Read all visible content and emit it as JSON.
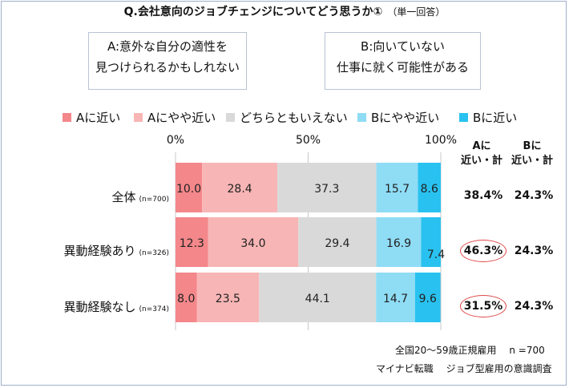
{
  "title": "Q.会社意向のジョブチェンジについてどう思うか①",
  "title_sub": "（単一回答）",
  "option_a": {
    "line1": "A:意外な自分の適性を",
    "line2": "見つけられるかもしれない"
  },
  "option_b": {
    "line1": "B:向いていない",
    "line2": "仕事に就く可能性がある"
  },
  "summary_headers": {
    "a": {
      "line1": "Aに",
      "line2": "近い・計"
    },
    "b": {
      "line1": "Bに",
      "line2": "近い・計"
    }
  },
  "footnote1": "全国20～59歳正規雇用　 n =700",
  "footnote2": "マイナビ転職　 ジョブ型雇用の意識調査",
  "chart_data": {
    "type": "bar",
    "orientation": "horizontal",
    "stacked": true,
    "xlim": [
      0,
      100
    ],
    "x_ticks": [
      "0%",
      "50%",
      "100%"
    ],
    "grid": true,
    "legend_position": "top",
    "categories": [
      "全体",
      "異動経験あり",
      "異動経験なし"
    ],
    "category_n": [
      "(n=700)",
      "(n=326)",
      "(n=374)"
    ],
    "series": [
      {
        "name": "Aに近い",
        "color": "#f4878a",
        "values": [
          10.0,
          12.3,
          8.0
        ],
        "labels": [
          "10.0",
          "12.3",
          "8.0"
        ]
      },
      {
        "name": "Aにやや近い",
        "color": "#f8b5b5",
        "values": [
          28.4,
          34.0,
          23.5
        ],
        "labels": [
          "28.4",
          "34.0",
          "23.5"
        ]
      },
      {
        "name": "どちらともいえない",
        "color": "#d9d9d9",
        "values": [
          37.3,
          29.4,
          44.1
        ],
        "labels": [
          "37.3",
          "29.4",
          "44.1"
        ]
      },
      {
        "name": "Bにやや近い",
        "color": "#8fdcf5",
        "values": [
          15.7,
          16.9,
          14.7
        ],
        "labels": [
          "15.7",
          "16.9",
          "14.7"
        ]
      },
      {
        "name": "Bに近い",
        "color": "#29c2f0",
        "values": [
          8.6,
          7.4,
          9.6
        ],
        "labels": [
          "8.6",
          "7.4",
          "9.6"
        ]
      }
    ],
    "totals_a": [
      "38.4%",
      "46.3%",
      "31.5%"
    ],
    "totals_b": [
      "24.3%",
      "24.3%",
      "24.3%"
    ],
    "highlighted_totals": [
      1,
      2
    ]
  }
}
